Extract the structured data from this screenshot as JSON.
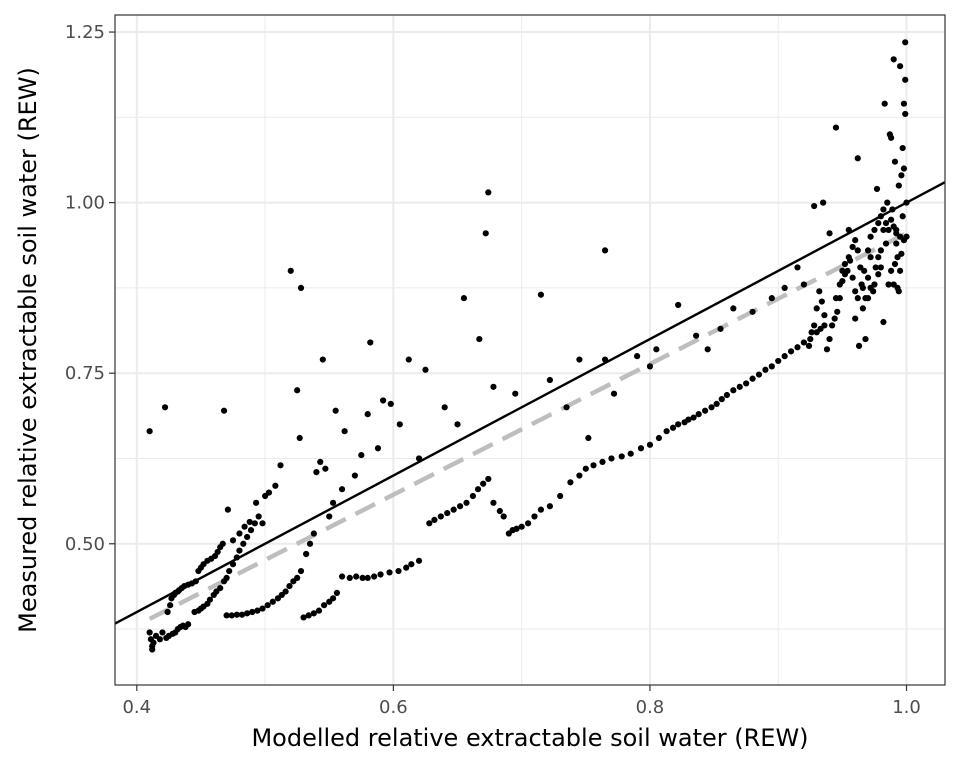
{
  "chart_data": {
    "type": "scatter",
    "title": "",
    "xlabel": "Modelled relative extractable soil water (REW)",
    "ylabel": "Measured relative extractable soil water (REW)",
    "xlim": [
      0.383,
      1.03
    ],
    "ylim": [
      0.293,
      1.275
    ],
    "x_ticks": [
      0.4,
      0.6,
      0.8,
      1.0
    ],
    "x_tick_labels": [
      "0.4",
      "0.6",
      "0.8",
      "1.0"
    ],
    "y_ticks": [
      0.5,
      0.75,
      1.0,
      1.25
    ],
    "y_tick_labels": [
      "0.50",
      "0.75",
      "1.00",
      "1.25"
    ],
    "grid": true,
    "legend": "none",
    "colors": {
      "points": "#000000",
      "identity_line": "#000000",
      "fit_line": "#bebebe",
      "grid": "#ebebeb",
      "panel_border": "#333333"
    },
    "lines": [
      {
        "kind": "identity",
        "style": "solid",
        "x": [
          0.383,
          1.03
        ],
        "y": [
          0.383,
          1.03
        ]
      },
      {
        "kind": "fit",
        "style": "dashed",
        "x": [
          0.41,
          1.0
        ],
        "y": [
          0.39,
          0.955
        ]
      }
    ],
    "points": [
      [
        0.41,
        0.665
      ],
      [
        0.422,
        0.7
      ],
      [
        0.41,
        0.37
      ],
      [
        0.411,
        0.36
      ],
      [
        0.412,
        0.35
      ],
      [
        0.412,
        0.345
      ],
      [
        0.413,
        0.355
      ],
      [
        0.415,
        0.365
      ],
      [
        0.418,
        0.36
      ],
      [
        0.42,
        0.37
      ],
      [
        0.423,
        0.362
      ],
      [
        0.425,
        0.365
      ],
      [
        0.428,
        0.368
      ],
      [
        0.43,
        0.37
      ],
      [
        0.432,
        0.375
      ],
      [
        0.434,
        0.378
      ],
      [
        0.436,
        0.38
      ],
      [
        0.438,
        0.378
      ],
      [
        0.44,
        0.382
      ],
      [
        0.424,
        0.4
      ],
      [
        0.426,
        0.41
      ],
      [
        0.427,
        0.42
      ],
      [
        0.429,
        0.425
      ],
      [
        0.43,
        0.428
      ],
      [
        0.432,
        0.43
      ],
      [
        0.433,
        0.432
      ],
      [
        0.435,
        0.435
      ],
      [
        0.437,
        0.438
      ],
      [
        0.44,
        0.44
      ],
      [
        0.443,
        0.442
      ],
      [
        0.446,
        0.445
      ],
      [
        0.448,
        0.46
      ],
      [
        0.45,
        0.465
      ],
      [
        0.452,
        0.47
      ],
      [
        0.455,
        0.475
      ],
      [
        0.458,
        0.478
      ],
      [
        0.461,
        0.482
      ],
      [
        0.463,
        0.488
      ],
      [
        0.465,
        0.495
      ],
      [
        0.467,
        0.5
      ],
      [
        0.468,
        0.695
      ],
      [
        0.445,
        0.4
      ],
      [
        0.448,
        0.402
      ],
      [
        0.45,
        0.405
      ],
      [
        0.452,
        0.408
      ],
      [
        0.455,
        0.412
      ],
      [
        0.457,
        0.418
      ],
      [
        0.46,
        0.425
      ],
      [
        0.462,
        0.43
      ],
      [
        0.465,
        0.435
      ],
      [
        0.468,
        0.445
      ],
      [
        0.47,
        0.45
      ],
      [
        0.472,
        0.46
      ],
      [
        0.475,
        0.47
      ],
      [
        0.478,
        0.48
      ],
      [
        0.48,
        0.49
      ],
      [
        0.483,
        0.5
      ],
      [
        0.486,
        0.51
      ],
      [
        0.489,
        0.52
      ],
      [
        0.492,
        0.53
      ],
      [
        0.495,
        0.54
      ],
      [
        0.471,
        0.55
      ],
      [
        0.475,
        0.505
      ],
      [
        0.48,
        0.515
      ],
      [
        0.484,
        0.525
      ],
      [
        0.488,
        0.532
      ],
      [
        0.493,
        0.56
      ],
      [
        0.498,
        0.53
      ],
      [
        0.5,
        0.57
      ],
      [
        0.503,
        0.575
      ],
      [
        0.47,
        0.395
      ],
      [
        0.474,
        0.395
      ],
      [
        0.478,
        0.396
      ],
      [
        0.482,
        0.396
      ],
      [
        0.486,
        0.398
      ],
      [
        0.49,
        0.4
      ],
      [
        0.494,
        0.402
      ],
      [
        0.498,
        0.405
      ],
      [
        0.502,
        0.41
      ],
      [
        0.506,
        0.415
      ],
      [
        0.51,
        0.42
      ],
      [
        0.513,
        0.425
      ],
      [
        0.516,
        0.43
      ],
      [
        0.519,
        0.438
      ],
      [
        0.522,
        0.445
      ],
      [
        0.525,
        0.45
      ],
      [
        0.528,
        0.46
      ],
      [
        0.508,
        0.585
      ],
      [
        0.512,
        0.615
      ],
      [
        0.52,
        0.9
      ],
      [
        0.525,
        0.725
      ],
      [
        0.527,
        0.655
      ],
      [
        0.528,
        0.875
      ],
      [
        0.532,
        0.485
      ],
      [
        0.535,
        0.5
      ],
      [
        0.538,
        0.515
      ],
      [
        0.54,
        0.605
      ],
      [
        0.543,
        0.62
      ],
      [
        0.545,
        0.77
      ],
      [
        0.547,
        0.61
      ],
      [
        0.55,
        0.54
      ],
      [
        0.553,
        0.56
      ],
      [
        0.555,
        0.695
      ],
      [
        0.56,
        0.58
      ],
      [
        0.562,
        0.665
      ],
      [
        0.53,
        0.392
      ],
      [
        0.534,
        0.395
      ],
      [
        0.538,
        0.398
      ],
      [
        0.542,
        0.402
      ],
      [
        0.546,
        0.41
      ],
      [
        0.55,
        0.415
      ],
      [
        0.553,
        0.42
      ],
      [
        0.556,
        0.428
      ],
      [
        0.56,
        0.452
      ],
      [
        0.566,
        0.45
      ],
      [
        0.571,
        0.452
      ],
      [
        0.576,
        0.45
      ],
      [
        0.58,
        0.45
      ],
      [
        0.585,
        0.452
      ],
      [
        0.59,
        0.455
      ],
      [
        0.597,
        0.458
      ],
      [
        0.604,
        0.46
      ],
      [
        0.61,
        0.465
      ],
      [
        0.614,
        0.47
      ],
      [
        0.62,
        0.475
      ],
      [
        0.57,
        0.6
      ],
      [
        0.575,
        0.63
      ],
      [
        0.58,
        0.69
      ],
      [
        0.582,
        0.795
      ],
      [
        0.588,
        0.64
      ],
      [
        0.592,
        0.71
      ],
      [
        0.598,
        0.705
      ],
      [
        0.605,
        0.675
      ],
      [
        0.612,
        0.77
      ],
      [
        0.62,
        0.625
      ],
      [
        0.625,
        0.755
      ],
      [
        0.628,
        0.53
      ],
      [
        0.632,
        0.535
      ],
      [
        0.637,
        0.54
      ],
      [
        0.642,
        0.545
      ],
      [
        0.647,
        0.55
      ],
      [
        0.652,
        0.555
      ],
      [
        0.657,
        0.56
      ],
      [
        0.662,
        0.57
      ],
      [
        0.666,
        0.58
      ],
      [
        0.67,
        0.588
      ],
      [
        0.674,
        0.595
      ],
      [
        0.678,
        0.56
      ],
      [
        0.683,
        0.548
      ],
      [
        0.686,
        0.54
      ],
      [
        0.69,
        0.515
      ],
      [
        0.693,
        0.52
      ],
      [
        0.696,
        0.522
      ],
      [
        0.7,
        0.525
      ],
      [
        0.705,
        0.53
      ],
      [
        0.71,
        0.54
      ],
      [
        0.715,
        0.55
      ],
      [
        0.722,
        0.555
      ],
      [
        0.73,
        0.57
      ],
      [
        0.738,
        0.59
      ],
      [
        0.745,
        0.6
      ],
      [
        0.75,
        0.61
      ],
      [
        0.756,
        0.615
      ],
      [
        0.763,
        0.62
      ],
      [
        0.77,
        0.625
      ],
      [
        0.778,
        0.628
      ],
      [
        0.785,
        0.632
      ],
      [
        0.793,
        0.64
      ],
      [
        0.8,
        0.645
      ],
      [
        0.807,
        0.655
      ],
      [
        0.813,
        0.665
      ],
      [
        0.818,
        0.67
      ],
      [
        0.822,
        0.675
      ],
      [
        0.827,
        0.678
      ],
      [
        0.83,
        0.682
      ],
      [
        0.834,
        0.685
      ],
      [
        0.838,
        0.69
      ],
      [
        0.843,
        0.695
      ],
      [
        0.848,
        0.7
      ],
      [
        0.852,
        0.705
      ],
      [
        0.856,
        0.712
      ],
      [
        0.86,
        0.718
      ],
      [
        0.865,
        0.725
      ],
      [
        0.87,
        0.73
      ],
      [
        0.875,
        0.735
      ],
      [
        0.88,
        0.742
      ],
      [
        0.885,
        0.748
      ],
      [
        0.89,
        0.755
      ],
      [
        0.895,
        0.76
      ],
      [
        0.9,
        0.768
      ],
      [
        0.905,
        0.775
      ],
      [
        0.91,
        0.782
      ],
      [
        0.915,
        0.788
      ],
      [
        0.92,
        0.795
      ],
      [
        0.925,
        0.8
      ],
      [
        0.93,
        0.81
      ],
      [
        0.933,
        0.815
      ],
      [
        0.936,
        0.82
      ],
      [
        0.64,
        0.7
      ],
      [
        0.65,
        0.675
      ],
      [
        0.655,
        0.86
      ],
      [
        0.667,
        0.8
      ],
      [
        0.672,
        0.955
      ],
      [
        0.674,
        1.015
      ],
      [
        0.678,
        0.73
      ],
      [
        0.695,
        0.72
      ],
      [
        0.715,
        0.865
      ],
      [
        0.722,
        0.74
      ],
      [
        0.735,
        0.7
      ],
      [
        0.745,
        0.77
      ],
      [
        0.752,
        0.655
      ],
      [
        0.765,
        0.93
      ],
      [
        0.765,
        0.77
      ],
      [
        0.772,
        0.72
      ],
      [
        0.79,
        0.775
      ],
      [
        0.8,
        0.76
      ],
      [
        0.805,
        0.785
      ],
      [
        0.822,
        0.85
      ],
      [
        0.836,
        0.805
      ],
      [
        0.845,
        0.785
      ],
      [
        0.855,
        0.815
      ],
      [
        0.865,
        0.845
      ],
      [
        0.88,
        0.84
      ],
      [
        0.895,
        0.86
      ],
      [
        0.905,
        0.875
      ],
      [
        0.915,
        0.905
      ],
      [
        0.92,
        0.88
      ],
      [
        0.928,
        0.995
      ],
      [
        0.935,
        1.0
      ],
      [
        0.94,
        0.955
      ],
      [
        0.945,
        0.86
      ],
      [
        0.948,
        0.88
      ],
      [
        0.95,
        0.9
      ],
      [
        0.952,
        0.91
      ],
      [
        0.955,
        0.92
      ],
      [
        0.958,
        0.89
      ],
      [
        0.96,
        0.87
      ],
      [
        0.962,
        0.86
      ],
      [
        0.965,
        0.88
      ],
      [
        0.967,
        0.9
      ],
      [
        0.97,
        0.93
      ],
      [
        0.972,
        0.95
      ],
      [
        0.975,
        0.96
      ],
      [
        0.978,
        0.97
      ],
      [
        0.98,
        0.98
      ],
      [
        0.982,
        0.99
      ],
      [
        0.985,
        1.0
      ],
      [
        0.988,
        0.975
      ],
      [
        0.99,
        0.965
      ],
      [
        0.992,
        0.955
      ],
      [
        0.995,
        0.95
      ],
      [
        0.998,
        0.945
      ],
      [
        0.945,
        1.11
      ],
      [
        0.955,
        0.96
      ],
      [
        0.96,
        0.83
      ],
      [
        0.962,
        1.065
      ],
      [
        0.963,
        0.79
      ],
      [
        0.966,
        0.845
      ],
      [
        0.968,
        0.8
      ],
      [
        0.97,
        0.89
      ],
      [
        0.972,
        0.92
      ],
      [
        0.975,
        0.88
      ],
      [
        0.977,
        1.02
      ],
      [
        0.978,
        0.895
      ],
      [
        0.98,
        0.905
      ],
      [
        0.982,
        0.825
      ],
      [
        0.983,
        1.145
      ],
      [
        0.984,
        0.94
      ],
      [
        0.986,
        0.88
      ],
      [
        0.987,
        1.1
      ],
      [
        0.988,
        1.095
      ],
      [
        0.989,
        0.99
      ],
      [
        0.99,
        1.21
      ],
      [
        0.991,
        1.06
      ],
      [
        0.992,
        0.96
      ],
      [
        0.993,
        0.875
      ],
      [
        0.994,
        1.025
      ],
      [
        0.995,
        1.2
      ],
      [
        0.996,
        1.04
      ],
      [
        0.997,
        1.08
      ],
      [
        0.998,
        1.145
      ],
      [
        0.999,
        1.235
      ],
      [
        0.999,
        1.18
      ],
      [
        1.0,
        1.0
      ],
      [
        1.0,
        0.95
      ],
      [
        0.999,
        1.13
      ],
      [
        0.998,
        1.05
      ],
      [
        0.997,
        0.98
      ],
      [
        0.996,
        0.925
      ],
      [
        0.995,
        0.9
      ],
      [
        0.994,
        0.87
      ],
      [
        0.993,
        0.92
      ],
      [
        0.992,
        0.94
      ],
      [
        0.991,
        0.91
      ],
      [
        0.99,
        0.88
      ],
      [
        0.988,
        0.9
      ],
      [
        0.986,
        0.96
      ],
      [
        0.984,
        0.97
      ],
      [
        0.982,
        0.96
      ],
      [
        0.98,
        0.93
      ],
      [
        0.978,
        0.92
      ],
      [
        0.976,
        0.905
      ],
      [
        0.974,
        0.87
      ],
      [
        0.972,
        0.875
      ],
      [
        0.97,
        0.86
      ],
      [
        0.968,
        0.86
      ],
      [
        0.966,
        0.875
      ],
      [
        0.964,
        0.905
      ],
      [
        0.962,
        0.93
      ],
      [
        0.96,
        0.945
      ],
      [
        0.958,
        0.935
      ],
      [
        0.956,
        0.915
      ],
      [
        0.954,
        0.9
      ],
      [
        0.952,
        0.895
      ],
      [
        0.95,
        0.885
      ],
      [
        0.948,
        0.86
      ],
      [
        0.946,
        0.84
      ],
      [
        0.944,
        0.83
      ],
      [
        0.942,
        0.82
      ],
      [
        0.94,
        0.8
      ],
      [
        0.938,
        0.785
      ],
      [
        0.936,
        0.835
      ],
      [
        0.934,
        0.855
      ],
      [
        0.932,
        0.87
      ],
      [
        0.93,
        0.845
      ],
      [
        0.928,
        0.82
      ],
      [
        0.926,
        0.81
      ],
      [
        0.924,
        0.79
      ]
    ]
  }
}
